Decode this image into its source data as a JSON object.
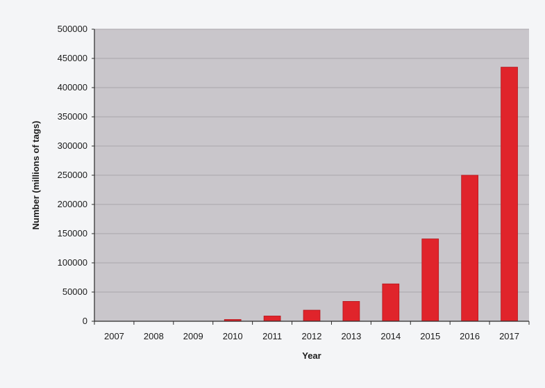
{
  "chart_data": {
    "type": "bar",
    "title": "",
    "xlabel": "Year",
    "ylabel": "Number (millions of tags)",
    "categories": [
      "2007",
      "2008",
      "2009",
      "2010",
      "2011",
      "2012",
      "2013",
      "2014",
      "2015",
      "2016",
      "2017"
    ],
    "series": [
      {
        "values": [
          0,
          0,
          0,
          3000,
          9000,
          19000,
          34000,
          64000,
          141000,
          250000,
          435000
        ]
      }
    ],
    "yticks": [
      "0",
      "50000",
      "100000",
      "150000",
      "200000",
      "250000",
      "300000",
      "350000",
      "400000",
      "450000",
      "500000"
    ],
    "ylim": [
      0,
      500000
    ],
    "grid": true,
    "legend": "none"
  },
  "colors": {
    "bar": "#e0242b",
    "bar_edge": "#b5161c",
    "plot_background": "#c9c6cb",
    "gridline": "#a9a5ab",
    "axis": "#2a2a2a"
  }
}
